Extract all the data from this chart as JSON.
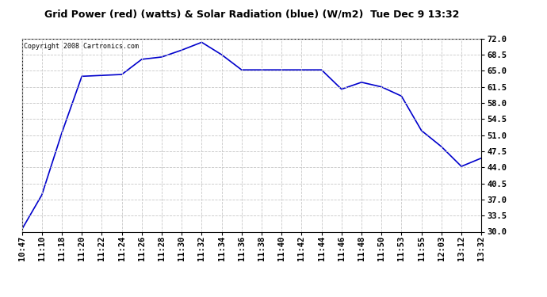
{
  "title": "Grid Power (red) (watts) & Solar Radiation (blue) (W/m2)  Tue Dec 9 13:32",
  "copyright": "Copyright 2008 Cartronics.com",
  "line_color": "#0000cc",
  "bg_color": "#ffffff",
  "grid_color": "#c8c8c8",
  "ylim": [
    30.0,
    72.0
  ],
  "yticks": [
    30.0,
    33.5,
    37.0,
    40.5,
    44.0,
    47.5,
    51.0,
    54.5,
    58.0,
    61.5,
    65.0,
    68.5,
    72.0
  ],
  "x_labels": [
    "10:47",
    "11:10",
    "11:18",
    "11:20",
    "11:22",
    "11:24",
    "11:26",
    "11:28",
    "11:30",
    "11:32",
    "11:34",
    "11:36",
    "11:38",
    "11:40",
    "11:42",
    "11:44",
    "11:46",
    "11:48",
    "11:50",
    "11:53",
    "11:55",
    "12:03",
    "13:12",
    "13:32"
  ],
  "y_values": [
    30.5,
    38.0,
    51.5,
    63.8,
    64.0,
    64.2,
    67.5,
    68.0,
    69.5,
    71.2,
    68.5,
    65.2,
    65.2,
    65.2,
    65.2,
    65.2,
    61.0,
    62.5,
    61.5,
    59.5,
    52.0,
    48.5,
    44.2,
    46.0
  ]
}
